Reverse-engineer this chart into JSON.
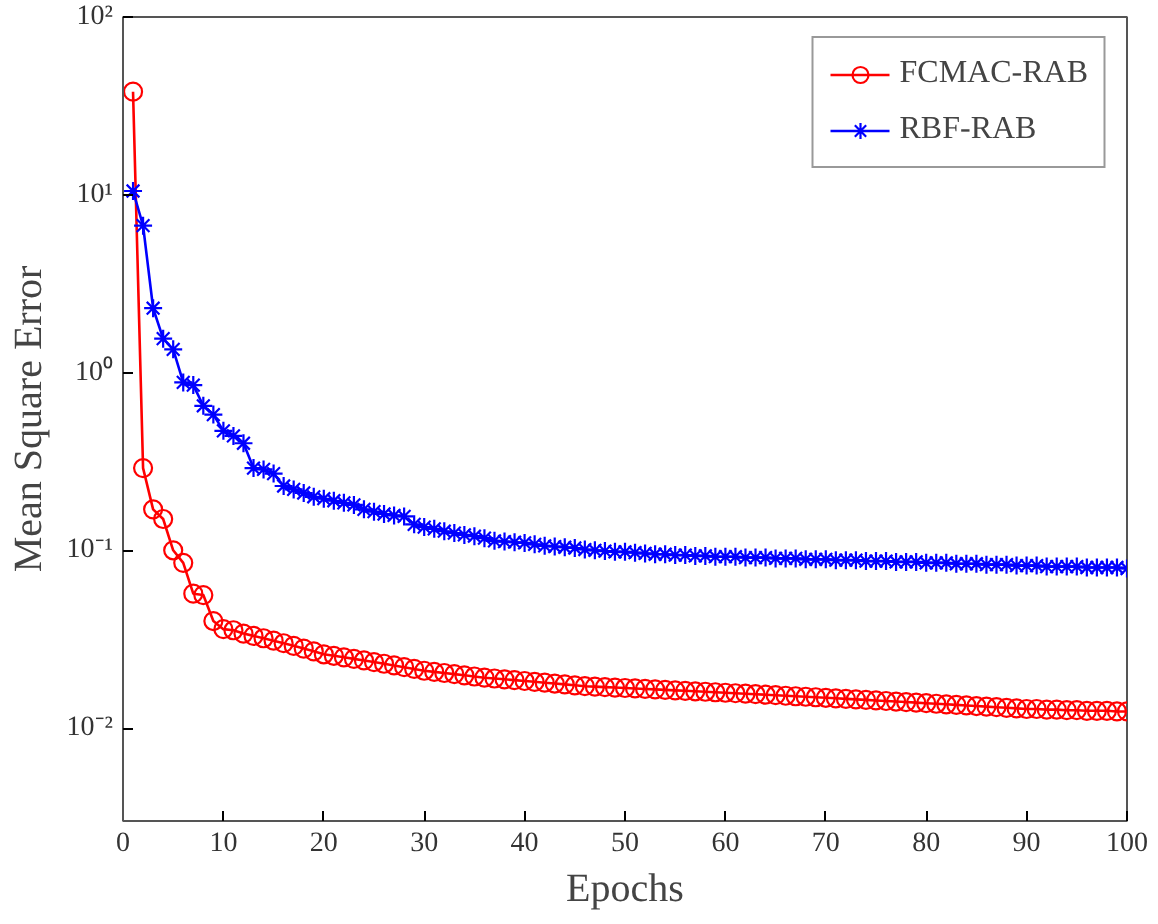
{
  "chart_data": {
    "type": "line",
    "xlabel": "Epochs",
    "ylabel": "Mean Square Error",
    "log": true,
    "grid": false,
    "legend": "top right",
    "x": [
      1,
      2,
      3,
      4,
      5,
      6,
      7,
      8,
      9,
      10,
      11,
      12,
      13,
      14,
      15,
      16,
      17,
      18,
      19,
      20,
      21,
      22,
      23,
      24,
      25,
      26,
      27,
      28,
      29,
      30,
      31,
      32,
      33,
      34,
      35,
      36,
      37,
      38,
      39,
      40,
      41,
      42,
      43,
      44,
      45,
      46,
      47,
      48,
      49,
      50,
      51,
      52,
      53,
      54,
      55,
      56,
      57,
      58,
      59,
      60,
      61,
      62,
      63,
      64,
      65,
      66,
      67,
      68,
      69,
      70,
      71,
      72,
      73,
      74,
      75,
      76,
      77,
      78,
      79,
      80,
      81,
      82,
      83,
      84,
      85,
      86,
      87,
      88,
      89,
      90,
      91,
      92,
      93,
      94,
      95,
      96,
      97,
      98,
      99,
      100
    ],
    "xlim": [
      0,
      100
    ],
    "xticks": [
      0,
      10,
      20,
      30,
      40,
      50,
      60,
      70,
      80,
      90,
      100
    ],
    "ylim": [
      0.003,
      100
    ],
    "yticks": [
      {
        "value": 0.01,
        "label": "10⁻²"
      },
      {
        "value": 0.1,
        "label": "10⁻¹"
      },
      {
        "value": 1,
        "label": "10⁰"
      },
      {
        "value": 10,
        "label": "10¹"
      },
      {
        "value": 100,
        "label": "10²"
      }
    ],
    "series": [
      {
        "name": "FCMAC-RAB",
        "color": "#ff0000",
        "marker": "circle",
        "values": [
          38,
          0.29,
          0.17,
          0.15,
          0.1,
          0.085,
          0.057,
          0.056,
          0.04,
          0.036,
          0.0355,
          0.034,
          0.033,
          0.032,
          0.031,
          0.03,
          0.029,
          0.028,
          0.027,
          0.026,
          0.0255,
          0.025,
          0.0245,
          0.024,
          0.0235,
          0.023,
          0.0225,
          0.022,
          0.0215,
          0.021,
          0.0207,
          0.0204,
          0.0201,
          0.0198,
          0.0195,
          0.0192,
          0.019,
          0.0188,
          0.0186,
          0.0184,
          0.0182,
          0.018,
          0.0178,
          0.0176,
          0.0174,
          0.0172,
          0.0171,
          0.017,
          0.0169,
          0.0168,
          0.0167,
          0.0166,
          0.0165,
          0.0164,
          0.0163,
          0.0162,
          0.0161,
          0.016,
          0.0159,
          0.0158,
          0.0157,
          0.0156,
          0.0155,
          0.0154,
          0.0153,
          0.0152,
          0.0151,
          0.015,
          0.0149,
          0.0148,
          0.0147,
          0.0146,
          0.0145,
          0.0144,
          0.0143,
          0.0142,
          0.0141,
          0.014,
          0.0139,
          0.0138,
          0.0137,
          0.0136,
          0.0135,
          0.0134,
          0.0133,
          0.0132,
          0.0131,
          0.013,
          0.0129,
          0.0128,
          0.0128,
          0.0127,
          0.0127,
          0.0126,
          0.0126,
          0.0125,
          0.0125,
          0.0125,
          0.0124,
          0.0124
        ]
      },
      {
        "name": "RBF-RAB",
        "color": "#0000ff",
        "marker": "cross",
        "values": [
          10.5,
          6.7,
          2.3,
          1.55,
          1.35,
          0.88,
          0.85,
          0.65,
          0.58,
          0.47,
          0.44,
          0.4,
          0.29,
          0.285,
          0.27,
          0.23,
          0.22,
          0.21,
          0.2,
          0.195,
          0.19,
          0.185,
          0.18,
          0.17,
          0.165,
          0.16,
          0.157,
          0.155,
          0.14,
          0.135,
          0.132,
          0.128,
          0.125,
          0.122,
          0.12,
          0.117,
          0.113,
          0.112,
          0.111,
          0.11,
          0.108,
          0.106,
          0.105,
          0.104,
          0.103,
          0.101,
          0.1,
          0.099,
          0.098,
          0.098,
          0.097,
          0.096,
          0.095,
          0.095,
          0.094,
          0.094,
          0.093,
          0.093,
          0.092,
          0.092,
          0.092,
          0.091,
          0.091,
          0.091,
          0.09,
          0.09,
          0.09,
          0.089,
          0.089,
          0.089,
          0.088,
          0.088,
          0.088,
          0.087,
          0.087,
          0.087,
          0.086,
          0.086,
          0.086,
          0.085,
          0.085,
          0.085,
          0.084,
          0.084,
          0.084,
          0.083,
          0.083,
          0.083,
          0.082,
          0.082,
          0.082,
          0.081,
          0.081,
          0.081,
          0.081,
          0.08,
          0.08,
          0.08,
          0.08,
          0.079
        ]
      }
    ]
  }
}
